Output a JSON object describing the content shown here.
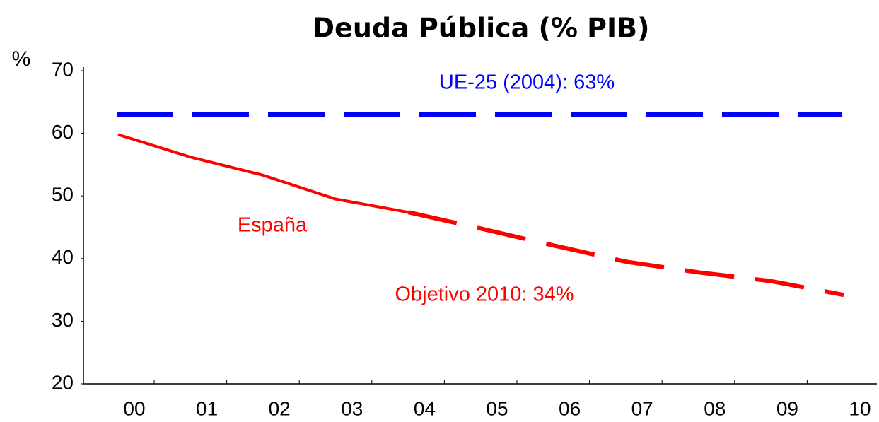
{
  "chart_data": {
    "type": "line",
    "title": "Deuda Pública (% PIB)",
    "y_label": "%",
    "categories": [
      "00",
      "01",
      "02",
      "03",
      "04",
      "05",
      "06",
      "07",
      "08",
      "09",
      "10"
    ],
    "series": [
      {
        "name": "España",
        "color": "#ff0000",
        "dashed": false,
        "values": [
          59.8,
          56.2,
          53.3,
          49.5,
          47.4,
          null,
          null,
          null,
          null,
          null,
          null
        ]
      },
      {
        "color": "#ff0000",
        "dashed": true,
        "values": [
          null,
          null,
          null,
          null,
          47.4,
          44.8,
          42.1,
          39.5,
          37.8,
          36.4,
          34.2
        ]
      }
    ],
    "reference_line": {
      "value": 63,
      "color": "#0000ff",
      "label": "UE-25 (2004): 63%"
    },
    "annotations": [
      {
        "text": "Objetivo 2010: 34%",
        "color": "#ff0000"
      }
    ],
    "ylim": [
      20,
      70
    ],
    "yticks": [
      20,
      30,
      40,
      50,
      60,
      70
    ],
    "grid": false
  }
}
